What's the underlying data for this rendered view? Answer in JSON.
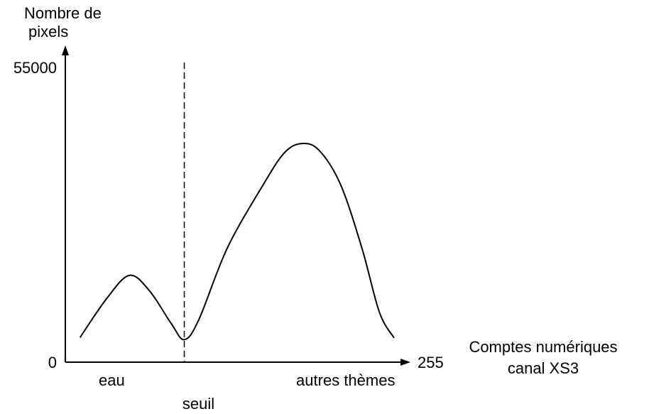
{
  "chart_data": {
    "type": "line",
    "ylabel": [
      "Nombre de",
      "pixels"
    ],
    "xlabel": [
      "Comptes numériques",
      "canal XS3"
    ],
    "xlim": [
      0,
      255
    ],
    "xticks": [
      255
    ],
    "ylim": [
      0,
      55000
    ],
    "yticks": [
      0,
      55000
    ],
    "color": "#000000",
    "x": [
      11,
      31,
      48,
      63,
      79,
      89,
      100,
      121,
      148,
      164,
      177,
      190,
      206,
      222,
      235,
      246
    ],
    "values": [
      4600,
      11900,
      16200,
      13300,
      7300,
      4200,
      8000,
      21200,
      33100,
      39100,
      40800,
      39500,
      33100,
      21200,
      9300,
      4500
    ],
    "threshold": {
      "x": 89,
      "label": "seuil"
    },
    "annotations": [
      {
        "text": "eau",
        "x": 31
      },
      {
        "text": "autres thèmes",
        "x": 206
      }
    ]
  }
}
